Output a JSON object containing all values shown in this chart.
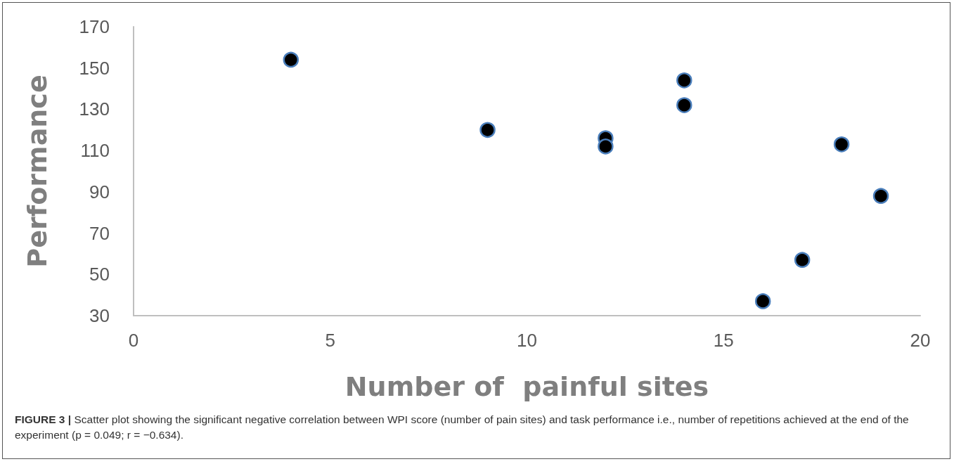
{
  "chart_data": {
    "type": "scatter",
    "xlabel": "Number of  painful sites",
    "ylabel": "Performance",
    "x": [
      4,
      9,
      12,
      12,
      14,
      14,
      16,
      17,
      18,
      19
    ],
    "values": [
      154,
      120,
      116,
      112,
      144,
      132,
      37,
      57,
      113,
      88
    ],
    "color": "#000000",
    "marker": "circle",
    "grid": false,
    "xlim": [
      0,
      20
    ],
    "xticks": [
      0,
      5,
      10,
      15,
      20
    ],
    "ylim": [
      30,
      170
    ],
    "yticks": [
      30,
      50,
      70,
      90,
      110,
      130,
      150,
      170
    ],
    "annotations": [
      "FIGURE 3 | Scatter plot showing the significant negative correlation between WPI score (number of pain sites) and task performance i.e., number of repetitions achieved at the end of the experiment (p = 0.049; r = −0.634)."
    ]
  }
}
